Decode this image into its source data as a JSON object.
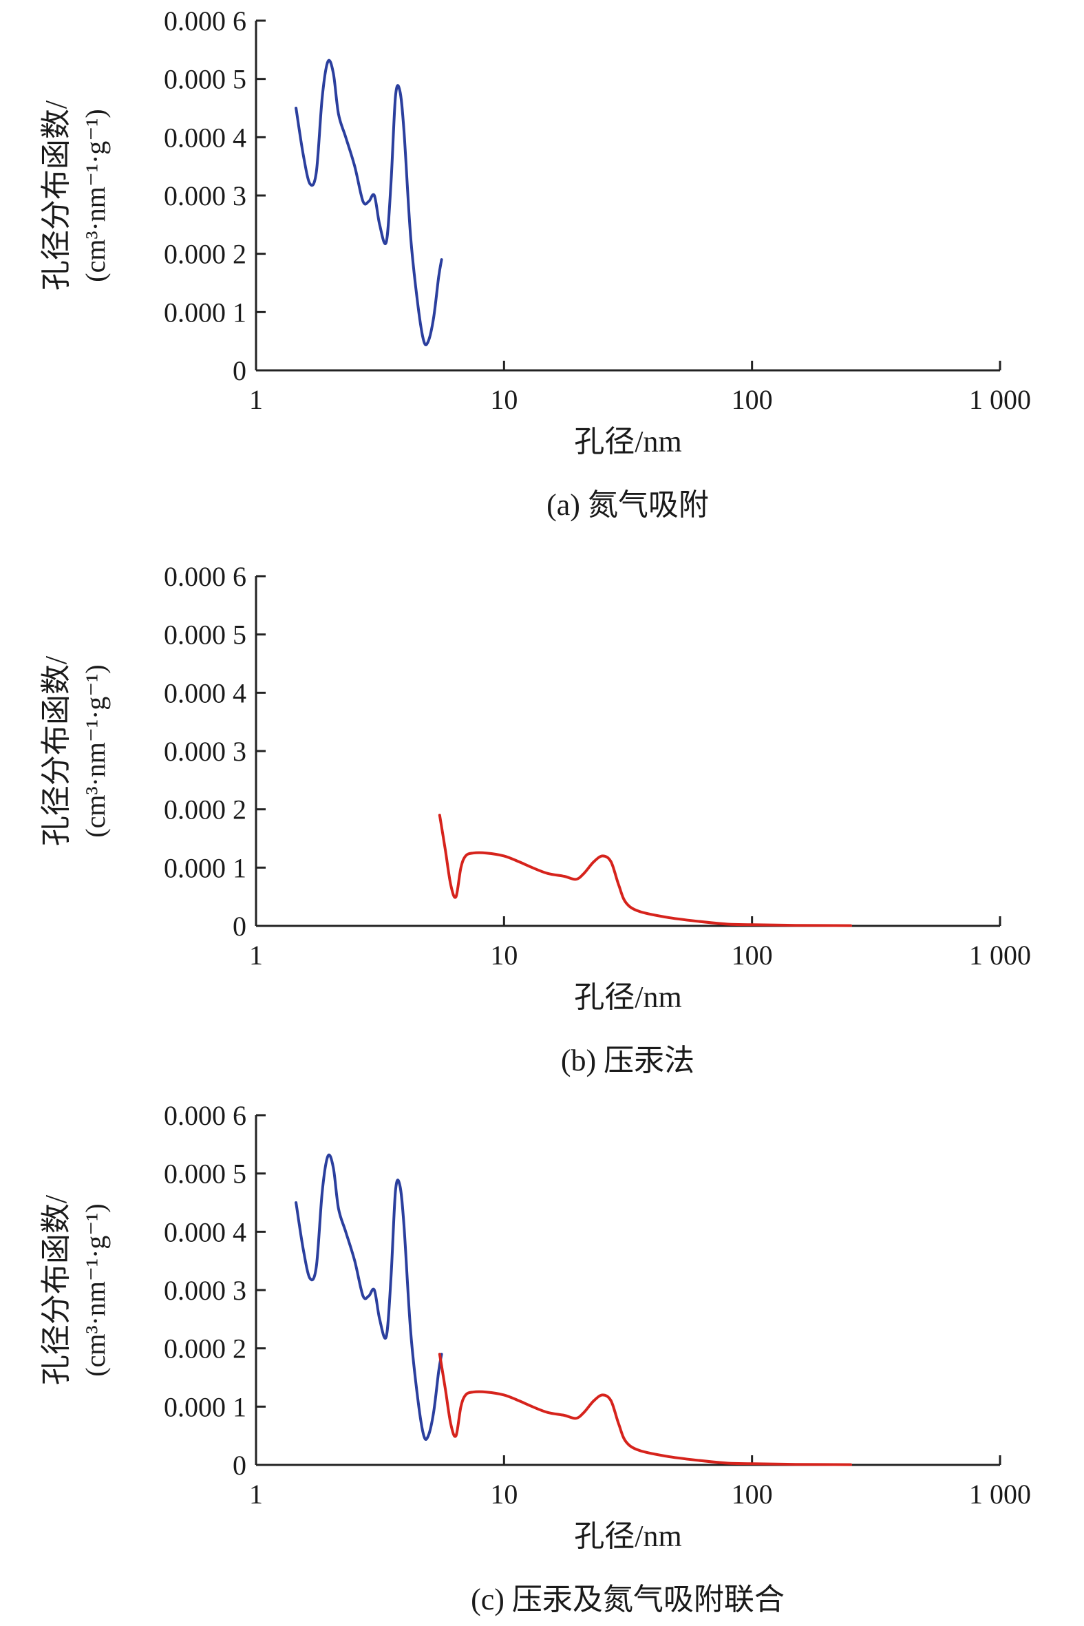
{
  "chart_data": [
    {
      "type": "line",
      "caption": "(a) 氮气吸附",
      "xlabel": "孔径/nm",
      "ylabel_line1": "孔径分布函数/",
      "ylabel_line2": "(cm³·nm⁻¹·g⁻¹)",
      "x_scale": "log",
      "xlim": [
        1,
        1000
      ],
      "ylim": [
        0,
        0.0006
      ],
      "x_ticks": [
        1,
        10,
        100,
        1000
      ],
      "x_tick_labels": [
        "1",
        "10",
        "100",
        "1 000"
      ],
      "y_ticks": [
        0,
        0.0001,
        0.0002,
        0.0003,
        0.0004,
        0.0005,
        0.0006
      ],
      "y_tick_labels": [
        "0",
        "0.000 1",
        "0.000 2",
        "0.000 3",
        "0.000 4",
        "0.000 5",
        "0.000 6"
      ],
      "series": [
        {
          "color": "#2b3f9e",
          "x": [
            1.45,
            1.55,
            1.65,
            1.75,
            1.85,
            1.95,
            2.05,
            2.15,
            2.3,
            2.5,
            2.7,
            2.85,
            3.0,
            3.15,
            3.35,
            3.5,
            3.65,
            3.8,
            3.95,
            4.2,
            4.5,
            4.75,
            4.95,
            5.2,
            5.45,
            5.6
          ],
          "y": [
            0.00045,
            0.00037,
            0.00032,
            0.00034,
            0.00047,
            0.00053,
            0.00051,
            0.00044,
            0.0004,
            0.00035,
            0.00029,
            0.00029,
            0.0003,
            0.00025,
            0.00022,
            0.00032,
            0.00047,
            0.00048,
            0.00041,
            0.00023,
            0.00011,
            5e-05,
            5e-05,
            9e-05,
            0.00016,
            0.00019
          ]
        }
      ]
    },
    {
      "type": "line",
      "caption": "(b) 压汞法",
      "xlabel": "孔径/nm",
      "ylabel_line1": "孔径分布函数/",
      "ylabel_line2": "(cm³·nm⁻¹·g⁻¹)",
      "x_scale": "log",
      "xlim": [
        1,
        1000
      ],
      "ylim": [
        0,
        0.0006
      ],
      "x_ticks": [
        1,
        10,
        100,
        1000
      ],
      "x_tick_labels": [
        "1",
        "10",
        "100",
        "1 000"
      ],
      "y_ticks": [
        0,
        0.0001,
        0.0002,
        0.0003,
        0.0004,
        0.0005,
        0.0006
      ],
      "y_tick_labels": [
        "0",
        "0.000 1",
        "0.000 2",
        "0.000 3",
        "0.000 4",
        "0.000 5",
        "0.000 6"
      ],
      "series": [
        {
          "color": "#d6231c",
          "x": [
            5.5,
            5.8,
            6.1,
            6.4,
            6.7,
            7.0,
            7.5,
            8.5,
            10,
            11.5,
            13,
            15,
            17.5,
            19.5,
            21,
            23,
            25,
            27,
            29,
            31,
            35,
            45,
            60,
            80,
            100,
            150,
            250
          ],
          "y": [
            0.00019,
            0.00013,
            7e-05,
            5e-05,
            0.0001,
            0.00012,
            0.000125,
            0.000125,
            0.00012,
            0.00011,
            0.0001,
            9e-05,
            8.5e-05,
            8e-05,
            9e-05,
            0.00011,
            0.00012,
            0.00011,
            7e-05,
            4e-05,
            2.5e-05,
            1.5e-05,
            8e-06,
            3e-06,
            2e-06,
            1e-06,
            5e-07
          ]
        }
      ]
    },
    {
      "type": "line",
      "caption": "(c) 压汞及氮气吸附联合",
      "xlabel": "孔径/nm",
      "ylabel_line1": "孔径分布函数/",
      "ylabel_line2": "(cm³·nm⁻¹·g⁻¹)",
      "x_scale": "log",
      "xlim": [
        1,
        1000
      ],
      "ylim": [
        0,
        0.0006
      ],
      "x_ticks": [
        1,
        10,
        100,
        1000
      ],
      "x_tick_labels": [
        "1",
        "10",
        "100",
        "1 000"
      ],
      "y_ticks": [
        0,
        0.0001,
        0.0002,
        0.0003,
        0.0004,
        0.0005,
        0.0006
      ],
      "y_tick_labels": [
        "0",
        "0.000 1",
        "0.000 2",
        "0.000 3",
        "0.000 4",
        "0.000 5",
        "0.000 6"
      ],
      "series": [
        {
          "color": "#2b3f9e",
          "x": [
            1.45,
            1.55,
            1.65,
            1.75,
            1.85,
            1.95,
            2.05,
            2.15,
            2.3,
            2.5,
            2.7,
            2.85,
            3.0,
            3.15,
            3.35,
            3.5,
            3.65,
            3.8,
            3.95,
            4.2,
            4.5,
            4.75,
            4.95,
            5.2,
            5.45,
            5.6
          ],
          "y": [
            0.00045,
            0.00037,
            0.00032,
            0.00034,
            0.00047,
            0.00053,
            0.00051,
            0.00044,
            0.0004,
            0.00035,
            0.00029,
            0.00029,
            0.0003,
            0.00025,
            0.00022,
            0.00032,
            0.00047,
            0.00048,
            0.00041,
            0.00023,
            0.00011,
            5e-05,
            5e-05,
            9e-05,
            0.00016,
            0.00019
          ]
        },
        {
          "color": "#d6231c",
          "x": [
            5.5,
            5.8,
            6.1,
            6.4,
            6.7,
            7.0,
            7.5,
            8.5,
            10,
            11.5,
            13,
            15,
            17.5,
            19.5,
            21,
            23,
            25,
            27,
            29,
            31,
            35,
            45,
            60,
            80,
            100,
            150,
            250
          ],
          "y": [
            0.00019,
            0.00013,
            7e-05,
            5e-05,
            0.0001,
            0.00012,
            0.000125,
            0.000125,
            0.00012,
            0.00011,
            0.0001,
            9e-05,
            8.5e-05,
            8e-05,
            9e-05,
            0.00011,
            0.00012,
            0.00011,
            7e-05,
            4e-05,
            2.5e-05,
            1.5e-05,
            8e-06,
            3e-06,
            2e-06,
            1e-06,
            5e-07
          ]
        }
      ]
    }
  ]
}
